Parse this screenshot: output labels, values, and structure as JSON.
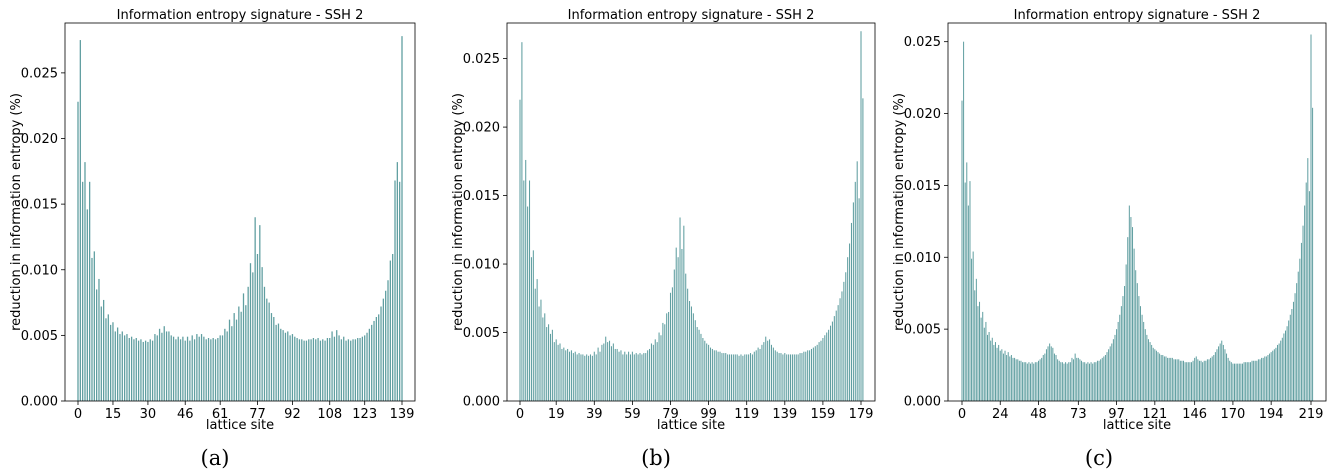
{
  "chart_data": [
    {
      "type": "bar",
      "title": "Information entropy signature - SSH 2",
      "xlabel": "lattice site",
      "ylabel": "reduction in information entropy (%)",
      "caption": "(a)",
      "n_sites": 140,
      "xtick_labels": [
        "0",
        "15",
        "30",
        "46",
        "61",
        "77",
        "92",
        "108",
        "123",
        "139"
      ],
      "xtick_sites": [
        0,
        15,
        30,
        46,
        61,
        77,
        92,
        108,
        123,
        139
      ],
      "ytick_labels": [
        "0.000",
        "0.005",
        "0.010",
        "0.015",
        "0.020",
        "0.025"
      ],
      "ytick_values": [
        0,
        0.005,
        0.01,
        0.015,
        0.02,
        0.025
      ],
      "ylim": [
        0,
        0.0288
      ],
      "grid": false,
      "bar_color": "#5f9ea0",
      "values": [
        0.0228,
        0.0275,
        0.0167,
        0.0182,
        0.0146,
        0.0167,
        0.0109,
        0.0114,
        0.0085,
        0.0093,
        0.0072,
        0.0077,
        0.0063,
        0.0066,
        0.0058,
        0.006,
        0.0053,
        0.0056,
        0.0051,
        0.0053,
        0.005,
        0.0051,
        0.0048,
        0.0049,
        0.0047,
        0.0048,
        0.0046,
        0.0047,
        0.0045,
        0.0046,
        0.0045,
        0.0047,
        0.0046,
        0.0051,
        0.005,
        0.0055,
        0.0052,
        0.0057,
        0.0053,
        0.0053,
        0.005,
        0.0049,
        0.0047,
        0.0049,
        0.0047,
        0.0049,
        0.0046,
        0.0049,
        0.0046,
        0.005,
        0.0047,
        0.0051,
        0.0049,
        0.0051,
        0.0049,
        0.0047,
        0.0048,
        0.0047,
        0.0048,
        0.0047,
        0.0048,
        0.005,
        0.005,
        0.0055,
        0.0053,
        0.0062,
        0.0057,
        0.0067,
        0.0062,
        0.0072,
        0.0068,
        0.0082,
        0.0073,
        0.0087,
        0.0105,
        0.0098,
        0.014,
        0.0112,
        0.0134,
        0.0102,
        0.0087,
        0.0078,
        0.0075,
        0.0067,
        0.0064,
        0.0058,
        0.0059,
        0.0055,
        0.0054,
        0.0052,
        0.0053,
        0.005,
        0.0051,
        0.0049,
        0.0048,
        0.0047,
        0.0047,
        0.0046,
        0.0046,
        0.0047,
        0.0047,
        0.0048,
        0.0047,
        0.0048,
        0.0046,
        0.0047,
        0.0046,
        0.0048,
        0.0048,
        0.0053,
        0.0049,
        0.0054,
        0.005,
        0.0047,
        0.0049,
        0.0046,
        0.0047,
        0.0046,
        0.0047,
        0.0047,
        0.0048,
        0.0048,
        0.0049,
        0.005,
        0.0052,
        0.0055,
        0.0058,
        0.0061,
        0.0064,
        0.0066,
        0.0072,
        0.0078,
        0.0084,
        0.0092,
        0.0107,
        0.0112,
        0.0168,
        0.0182,
        0.0167,
        0.0278
      ]
    },
    {
      "type": "bar",
      "title": "Information entropy signature - SSH 2",
      "xlabel": "lattice site",
      "ylabel": "reduction in information entropy (%)",
      "caption": "(b)",
      "n_sites": 180,
      "xtick_labels": [
        "0",
        "19",
        "39",
        "59",
        "79",
        "99",
        "119",
        "139",
        "159",
        "179"
      ],
      "xtick_sites": [
        0,
        19,
        39,
        59,
        79,
        99,
        119,
        139,
        159,
        179
      ],
      "ytick_labels": [
        "0.000",
        "0.005",
        "0.010",
        "0.015",
        "0.020",
        "0.025"
      ],
      "ytick_values": [
        0,
        0.005,
        0.01,
        0.015,
        0.02,
        0.025
      ],
      "ylim": [
        0,
        0.0276
      ],
      "grid": false,
      "bar_color": "#5f9ea0",
      "values": [
        0.022,
        0.0262,
        0.0161,
        0.0176,
        0.0142,
        0.0161,
        0.0105,
        0.011,
        0.0082,
        0.0089,
        0.0069,
        0.0074,
        0.0061,
        0.0064,
        0.0054,
        0.0056,
        0.0049,
        0.0052,
        0.0043,
        0.0045,
        0.0041,
        0.0042,
        0.0038,
        0.0039,
        0.0037,
        0.0038,
        0.0036,
        0.0037,
        0.0035,
        0.0036,
        0.0034,
        0.0035,
        0.0034,
        0.0034,
        0.0033,
        0.0034,
        0.0033,
        0.0034,
        0.0033,
        0.0036,
        0.0034,
        0.0039,
        0.0036,
        0.0041,
        0.0042,
        0.0047,
        0.0043,
        0.0044,
        0.004,
        0.0042,
        0.0038,
        0.0038,
        0.0036,
        0.0037,
        0.0034,
        0.0036,
        0.0034,
        0.0036,
        0.0034,
        0.0036,
        0.0034,
        0.0035,
        0.0034,
        0.0035,
        0.0034,
        0.0035,
        0.0035,
        0.0037,
        0.0038,
        0.0042,
        0.0041,
        0.0045,
        0.0043,
        0.005,
        0.0048,
        0.0057,
        0.0056,
        0.0064,
        0.0065,
        0.0079,
        0.0083,
        0.0096,
        0.0112,
        0.0105,
        0.0134,
        0.0111,
        0.0128,
        0.0093,
        0.0082,
        0.0073,
        0.0069,
        0.0064,
        0.0059,
        0.0054,
        0.0052,
        0.0049,
        0.0046,
        0.0044,
        0.0042,
        0.0041,
        0.0039,
        0.0038,
        0.0037,
        0.0037,
        0.0036,
        0.0036,
        0.0035,
        0.0035,
        0.0035,
        0.0034,
        0.0034,
        0.0034,
        0.0034,
        0.0034,
        0.0034,
        0.0033,
        0.0034,
        0.0033,
        0.0034,
        0.0034,
        0.0034,
        0.0035,
        0.0034,
        0.0036,
        0.0037,
        0.0039,
        0.0038,
        0.0041,
        0.0043,
        0.0047,
        0.0044,
        0.0045,
        0.0041,
        0.0039,
        0.0037,
        0.0036,
        0.0035,
        0.0035,
        0.0034,
        0.0035,
        0.0034,
        0.0034,
        0.0034,
        0.0034,
        0.0034,
        0.0034,
        0.0034,
        0.0035,
        0.0035,
        0.0036,
        0.0036,
        0.0037,
        0.0037,
        0.0038,
        0.0039,
        0.004,
        0.0041,
        0.0043,
        0.0044,
        0.0046,
        0.0048,
        0.005,
        0.0052,
        0.0055,
        0.0058,
        0.0062,
        0.0066,
        0.007,
        0.0075,
        0.008,
        0.0087,
        0.0094,
        0.0105,
        0.0115,
        0.013,
        0.0145,
        0.016,
        0.0175,
        0.0148,
        0.027,
        0.0221
      ]
    },
    {
      "type": "bar",
      "title": "Information entropy signature - SSH 2",
      "xlabel": "lattice site",
      "ylabel": "reduction in information entropy (%)",
      "caption": "(c)",
      "n_sites": 220,
      "xtick_labels": [
        "0",
        "24",
        "48",
        "73",
        "97",
        "121",
        "146",
        "170",
        "194",
        "219"
      ],
      "xtick_sites": [
        0,
        24,
        48,
        73,
        97,
        121,
        146,
        170,
        194,
        219
      ],
      "ytick_labels": [
        "0.000",
        "0.005",
        "0.010",
        "0.015",
        "0.020",
        "0.025"
      ],
      "ytick_values": [
        0,
        0.005,
        0.01,
        0.015,
        0.02,
        0.025
      ],
      "ylim": [
        0,
        0.0263
      ],
      "grid": false,
      "bar_color": "#5f9ea0",
      "values": [
        0.0209,
        0.025,
        0.0152,
        0.0166,
        0.0136,
        0.0153,
        0.0099,
        0.0104,
        0.0077,
        0.0085,
        0.0066,
        0.0069,
        0.0058,
        0.0062,
        0.0051,
        0.0055,
        0.0046,
        0.0048,
        0.0042,
        0.0044,
        0.0039,
        0.0041,
        0.0037,
        0.0039,
        0.0035,
        0.0036,
        0.0033,
        0.0035,
        0.0032,
        0.0034,
        0.0031,
        0.0032,
        0.003,
        0.003,
        0.0029,
        0.0029,
        0.0028,
        0.0028,
        0.0027,
        0.0027,
        0.0027,
        0.0026,
        0.0027,
        0.0026,
        0.0027,
        0.0026,
        0.0027,
        0.0027,
        0.0028,
        0.0029,
        0.003,
        0.0032,
        0.0033,
        0.0036,
        0.0038,
        0.004,
        0.0038,
        0.0037,
        0.0033,
        0.0032,
        0.0029,
        0.0028,
        0.0027,
        0.0027,
        0.0026,
        0.0027,
        0.0026,
        0.0027,
        0.0027,
        0.003,
        0.0029,
        0.0033,
        0.003,
        0.003,
        0.0029,
        0.0028,
        0.0027,
        0.0027,
        0.0026,
        0.0027,
        0.0026,
        0.0027,
        0.0026,
        0.0027,
        0.0027,
        0.0028,
        0.0028,
        0.0029,
        0.003,
        0.0031,
        0.0032,
        0.0034,
        0.0036,
        0.0038,
        0.004,
        0.0043,
        0.0046,
        0.005,
        0.0055,
        0.006,
        0.0066,
        0.0073,
        0.008,
        0.0095,
        0.0114,
        0.0136,
        0.0128,
        0.0121,
        0.0106,
        0.0091,
        0.0082,
        0.0073,
        0.0066,
        0.006,
        0.0055,
        0.005,
        0.0046,
        0.0043,
        0.0041,
        0.0039,
        0.0037,
        0.0036,
        0.0035,
        0.0034,
        0.0033,
        0.0032,
        0.0032,
        0.0031,
        0.0031,
        0.003,
        0.003,
        0.003,
        0.003,
        0.0029,
        0.0029,
        0.0029,
        0.0029,
        0.0028,
        0.0028,
        0.0028,
        0.0027,
        0.0027,
        0.0027,
        0.0027,
        0.0027,
        0.0028,
        0.003,
        0.0031,
        0.0029,
        0.0028,
        0.0028,
        0.0027,
        0.0028,
        0.0028,
        0.0029,
        0.0029,
        0.003,
        0.0031,
        0.0032,
        0.0034,
        0.0036,
        0.0038,
        0.004,
        0.0042,
        0.0039,
        0.0036,
        0.0033,
        0.003,
        0.0028,
        0.0027,
        0.0026,
        0.0026,
        0.0026,
        0.0026,
        0.0026,
        0.0026,
        0.0026,
        0.0027,
        0.0027,
        0.0027,
        0.0027,
        0.0027,
        0.0028,
        0.0028,
        0.0028,
        0.0028,
        0.0029,
        0.0029,
        0.003,
        0.003,
        0.0031,
        0.0031,
        0.0032,
        0.0033,
        0.0034,
        0.0035,
        0.0036,
        0.0037,
        0.0039,
        0.004,
        0.0042,
        0.0044,
        0.0047,
        0.0049,
        0.0052,
        0.0056,
        0.006,
        0.0064,
        0.0069,
        0.0075,
        0.0082,
        0.009,
        0.0099,
        0.011,
        0.0122,
        0.0136,
        0.0152,
        0.0169,
        0.0146,
        0.0255,
        0.0204
      ]
    }
  ]
}
